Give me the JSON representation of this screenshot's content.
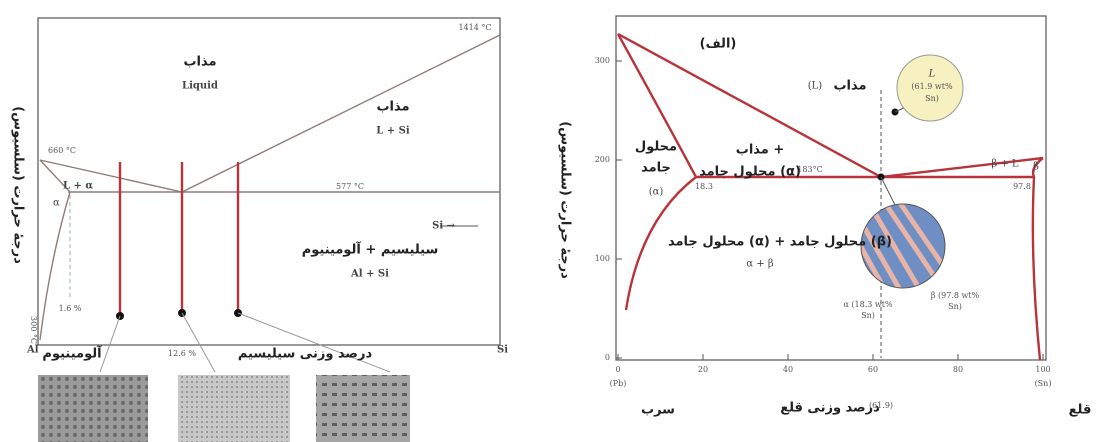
{
  "left_diagram": {
    "y_axis_label": "درجهٔ حرارت (سلسیوس)",
    "liquid_fa": "مذاب",
    "liquid_en": "Liquid",
    "si_melting": "1414 °C",
    "l_si_fa": "مذاب",
    "l_si_en": "L + Si",
    "al_melting": "660 °C",
    "l_alpha": "L + α",
    "alpha": "α",
    "eutectic_temp": "577 °C",
    "si_arrow": "Si →",
    "al_si_fa": "سیلیسیم + آلومینیوم",
    "al_si_en": "Al + Si",
    "al": "Al",
    "si": "Si",
    "bottom_temp": "300 °C",
    "solubility": "1.6 %",
    "eutectic_comp": "12.6 %",
    "aluminium": "آلومینیوم",
    "x_axis_label": "درصد وزنی سیلیسیم"
  },
  "right_diagram": {
    "y_axis_label": "درجهٔ حرارت (سلسیوس)",
    "x_axis_label": "درصد وزنی قلع",
    "yticks": [
      0,
      100,
      200,
      300
    ],
    "xticks": [
      0,
      20,
      40,
      60,
      80,
      100
    ],
    "pb_fa": "سرب",
    "sn_fa": "قلع",
    "pb_code": "(Pb)",
    "sn_code": "(Sn)",
    "eutectic_comp": "(61.9)",
    "panel": "(الف)",
    "liquid_fa": "مذاب",
    "liquid_symbol": "(L)",
    "bubble": [
      "L",
      "(61.9 wt%",
      "Sn)"
    ],
    "l_alpha_fa": [
      "مذاب +",
      "محلول جامد (α)"
    ],
    "alpha_fa": [
      "محلول",
      "جامد",
      "(α)"
    ],
    "alpha_limit": "18.3",
    "eutectic_temp": "183°C",
    "beta_limit": "97.8",
    "beta_l": "β + L",
    "beta": "β",
    "alpha_beta_fa": "محلول جامد (α) + محلول جامد (β)",
    "alpha_beta_en": "α + β",
    "alpha_phase": [
      "α (18.3 wt%",
      "Sn)"
    ],
    "beta_phase": [
      "β (97.8 wt%",
      "Sn)"
    ]
  }
}
